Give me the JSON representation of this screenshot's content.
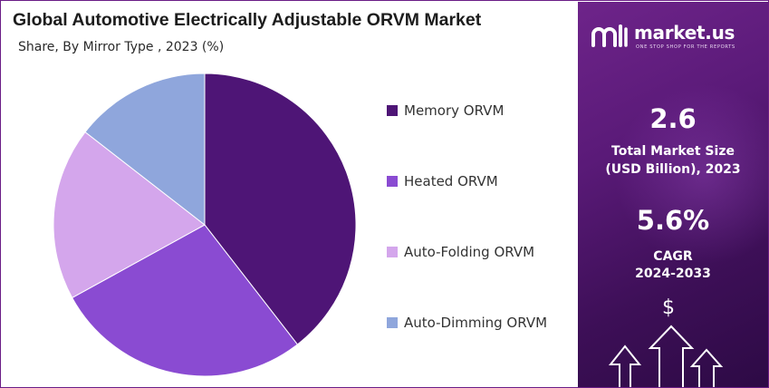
{
  "header": {
    "title": "Global Automotive Electrically Adjustable ORVM Market",
    "subtitle": "Share, By Mirror Type , 2023 (%)"
  },
  "chart_data": {
    "type": "pie",
    "title": "Global Automotive Electrically Adjustable ORVM Market",
    "subtitle": "Share, By Mirror Type , 2023 (%)",
    "categories": [
      "Memory ORVM",
      "Heated ORVM",
      "Auto-Folding ORVM",
      "Auto-Dimming ORVM"
    ],
    "values": [
      39.5,
      27.5,
      18.5,
      14.5
    ],
    "colors": [
      "#4e1576",
      "#8a4bd2",
      "#d4a6ec",
      "#8fa6dc"
    ],
    "start_angle_deg": 0,
    "direction": "clockwise",
    "legend_position": "right"
  },
  "legend": {
    "items": [
      {
        "label": "Memory ORVM",
        "color": "#4e1576"
      },
      {
        "label": "Heated ORVM",
        "color": "#8a4bd2"
      },
      {
        "label": "Auto-Folding ORVM",
        "color": "#d4a6ec"
      },
      {
        "label": "Auto-Dimming ORVM",
        "color": "#8fa6dc"
      }
    ]
  },
  "side_panel": {
    "brand_name": "market.us",
    "brand_tagline": "ONE STOP SHOP FOR THE REPORTS",
    "market_size_value": "2.6",
    "market_size_label_line1": "Total Market Size",
    "market_size_label_line2": "(USD Billion), 2023",
    "cagr_value": "5.6%",
    "cagr_label_line1": "CAGR",
    "cagr_label_line2": "2024-2033",
    "currency_symbol": "$",
    "background_color": "#5a1a78"
  },
  "icons": [
    "market-us-logo-icon",
    "dollar-icon",
    "growth-arrows-icon"
  ]
}
